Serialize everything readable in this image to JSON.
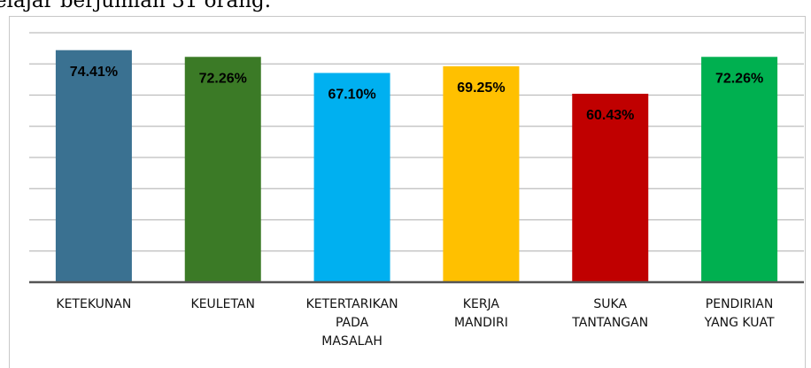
{
  "caption": "elajar berjumlah 31 orang.",
  "chart_data": {
    "type": "bar",
    "categories": [
      "KETEKUNAN",
      "KEULETAN",
      "KETERTARIKAN\nPADA\nMASALAH",
      "KERJA\nMANDIRI",
      "SUKA\nTANTANGAN",
      "PENDIRIAN\nYANG KUAT"
    ],
    "values": [
      74.41,
      72.26,
      67.1,
      69.25,
      60.43,
      72.26
    ],
    "value_labels": [
      "74.41%",
      "72.26%",
      "67.10%",
      "69.25%",
      "60.43%",
      "72.26%"
    ],
    "colors": [
      "#3a7191",
      "#3b7a26",
      "#00b0f0",
      "#ffc000",
      "#c00000",
      "#00b050"
    ],
    "ylim": [
      0,
      80
    ],
    "yticks": [
      0,
      10,
      20,
      30,
      40,
      50,
      60,
      70,
      80
    ],
    "grid": true
  }
}
